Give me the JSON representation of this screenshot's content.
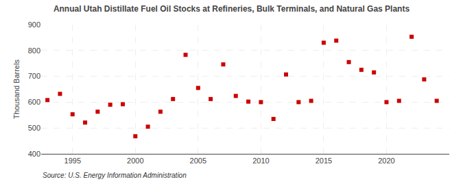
{
  "chart_data": {
    "type": "scatter",
    "title": "Annual Utah Distillate Fuel Oil Stocks at Refineries, Bulk Terminals, and Natural Gas Plants",
    "ylabel": "Thousand Barrels",
    "annotations": [
      "Source: U.S. Energy Information Administration"
    ],
    "x": [
      1993,
      1994,
      1995,
      1996,
      1997,
      1998,
      1999,
      2000,
      2001,
      2002,
      2003,
      2004,
      2005,
      2006,
      2007,
      2008,
      2009,
      2010,
      2011,
      2012,
      2013,
      2014,
      2015,
      2016,
      2017,
      2018,
      2019,
      2020,
      2021,
      2022,
      2023,
      2024
    ],
    "values": [
      608,
      632,
      553,
      521,
      563,
      590,
      592,
      468,
      505,
      563,
      612,
      783,
      655,
      612,
      746,
      624,
      602,
      600,
      535,
      707,
      600,
      605,
      830,
      838,
      755,
      725,
      715,
      600,
      605,
      853,
      688,
      605
    ],
    "color": "#cc0000",
    "marker": "square",
    "xlim": [
      1992.5,
      2025
    ],
    "xticks": [
      1995,
      2000,
      2005,
      2010,
      2015,
      2020
    ],
    "ylim": [
      400,
      900
    ],
    "yticks": [
      400,
      500,
      600,
      700,
      800,
      900
    ],
    "grid": true
  }
}
